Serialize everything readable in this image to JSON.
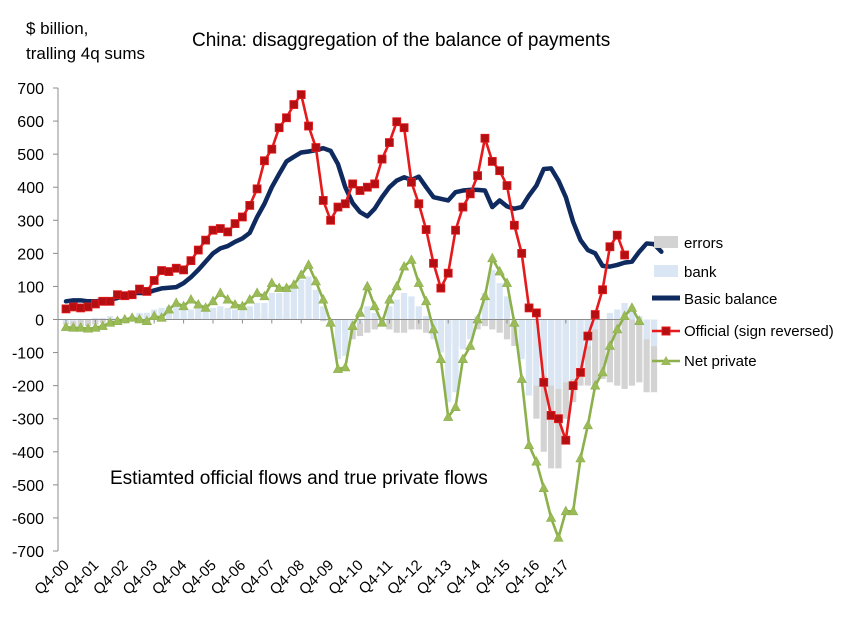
{
  "header": {
    "unit_line1": "$ billion,",
    "unit_line2": "tralling  4q sums",
    "title": "China: disaggregation of the balance of payments"
  },
  "annotation": "Estiamted official flows and true private flows",
  "colors": {
    "basic_balance": "#0f2a5e",
    "official": "#e41a1c",
    "official_marker": "#b40f12",
    "net_private": "#8cb04b",
    "net_private_marker": "#9bbb59",
    "errors": "#d3d3d3",
    "bank": "#dae6f3"
  },
  "chart_data": {
    "type": "line",
    "title": "China: disaggregation of the balance of payments",
    "ylabel": "$ billion, tralling 4q sums",
    "xlabel": "",
    "ylim": [
      -700,
      700
    ],
    "yticks": [
      "700",
      "600",
      "500",
      "400",
      "300",
      "200",
      "100",
      "0",
      "-100",
      "-200",
      "-300",
      "-400",
      "-500",
      "-600",
      "-700"
    ],
    "yticks_values": [
      700,
      600,
      500,
      400,
      300,
      200,
      100,
      0,
      -100,
      -200,
      -300,
      -400,
      -500,
      -600,
      -700
    ],
    "x_tick_labels": [
      "Q4-00",
      "Q4-01",
      "Q4-02",
      "Q4-03",
      "Q4-04",
      "Q4-05",
      "Q4-06",
      "Q4-07",
      "Q4-08",
      "Q4-09",
      "Q4-10",
      "Q4-11",
      "Q4-12",
      "Q4-13",
      "Q4-14",
      "Q4-15",
      "Q4-16",
      "Q4-17"
    ],
    "first_period": "Q4-00",
    "legend": [
      "errors",
      "bank",
      "Basic balance",
      "Official (sign reversed)",
      "Net private"
    ],
    "series": [
      {
        "name": "Basic balance",
        "type": "line",
        "values": [
          55,
          58,
          58,
          55,
          55,
          58,
          60,
          65,
          72,
          80,
          80,
          80,
          88,
          94,
          96,
          98,
          110,
          128,
          150,
          175,
          200,
          215,
          222,
          235,
          245,
          262,
          310,
          350,
          400,
          440,
          478,
          492,
          505,
          508,
          512,
          518,
          510,
          470,
          400,
          352,
          325,
          312,
          335,
          370,
          400,
          420,
          430,
          422,
          432,
          400,
          370,
          365,
          360,
          385,
          390,
          392,
          392,
          390,
          340,
          360,
          342,
          335,
          340,
          375,
          405,
          455,
          457,
          420,
          370,
          295,
          240,
          210,
          200,
          162,
          160,
          165,
          172,
          175,
          205,
          230,
          228,
          205
        ]
      },
      {
        "name": "Official (sign reversed)",
        "type": "line",
        "values": [
          32,
          38,
          35,
          38,
          47,
          55,
          55,
          75,
          72,
          75,
          92,
          85,
          118,
          148,
          145,
          155,
          150,
          178,
          210,
          240,
          270,
          275,
          265,
          290,
          310,
          345,
          395,
          480,
          515,
          580,
          610,
          650,
          680,
          585,
          520,
          360,
          300,
          340,
          350,
          410,
          390,
          400,
          410,
          485,
          535,
          598,
          580,
          415,
          350,
          272,
          170,
          95,
          140,
          270,
          340,
          380,
          435,
          548,
          478,
          450,
          405,
          285,
          200,
          35,
          20,
          -190,
          -290,
          -300,
          -365,
          -200,
          -160,
          -50,
          15,
          90,
          220,
          255,
          195
        ]
      },
      {
        "name": "Net private",
        "type": "line",
        "values": [
          -23,
          -25,
          -25,
          -28,
          -25,
          -20,
          -10,
          -5,
          0,
          5,
          0,
          -5,
          10,
          5,
          30,
          50,
          40,
          60,
          45,
          35,
          55,
          80,
          60,
          45,
          40,
          60,
          80,
          70,
          110,
          95,
          95,
          105,
          135,
          165,
          115,
          60,
          -10,
          -150,
          -145,
          -20,
          20,
          100,
          40,
          -10,
          60,
          100,
          160,
          180,
          110,
          55,
          -30,
          -120,
          -295,
          -265,
          -120,
          -80,
          0,
          70,
          185,
          145,
          110,
          -10,
          -180,
          -380,
          -430,
          -510,
          -600,
          -660,
          -580,
          -580,
          -420,
          -320,
          -200,
          -160,
          -80,
          -30,
          10,
          35,
          -5
        ]
      },
      {
        "name": "errors",
        "type": "bar",
        "values": [
          -15,
          -20,
          -20,
          -20,
          -15,
          -10,
          -5,
          0,
          5,
          10,
          15,
          15,
          10,
          10,
          15,
          20,
          15,
          15,
          10,
          15,
          20,
          25,
          25,
          20,
          20,
          30,
          25,
          20,
          15,
          15,
          10,
          5,
          5,
          5,
          0,
          -5,
          -10,
          -20,
          -40,
          -60,
          -50,
          -40,
          -30,
          -20,
          -30,
          -40,
          -40,
          -30,
          -30,
          -40,
          -50,
          -60,
          -70,
          -80,
          -80,
          -50,
          -30,
          -20,
          -30,
          -40,
          -60,
          -80,
          -100,
          -200,
          -300,
          -400,
          -450,
          -450,
          -300,
          -250,
          -200,
          -200,
          -200,
          -180,
          -190,
          -200,
          -210,
          -200,
          -190,
          -220,
          -220
        ]
      },
      {
        "name": "bank",
        "type": "bar",
        "values": [
          -10,
          -5,
          0,
          0,
          5,
          5,
          10,
          5,
          5,
          10,
          20,
          20,
          30,
          35,
          40,
          40,
          30,
          30,
          40,
          35,
          35,
          40,
          35,
          30,
          30,
          40,
          50,
          50,
          80,
          80,
          90,
          100,
          120,
          130,
          90,
          40,
          -20,
          -120,
          -110,
          -30,
          -10,
          40,
          20,
          -10,
          40,
          60,
          80,
          70,
          40,
          10,
          -60,
          -100,
          -250,
          -220,
          -90,
          -60,
          10,
          80,
          150,
          110,
          70,
          -20,
          -120,
          -230,
          -200,
          -170,
          -200,
          -210,
          -190,
          -180,
          -150,
          -80,
          -30,
          0,
          20,
          30,
          50,
          40,
          10,
          -60,
          -80
        ]
      }
    ]
  }
}
